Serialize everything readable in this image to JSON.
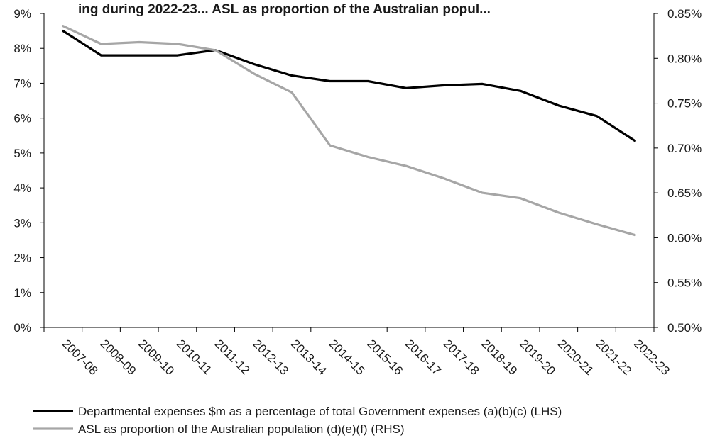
{
  "chart_data": {
    "type": "line",
    "title": "ing during 2022-23... ASL as proportion of the Australian popul...",
    "categories": [
      "2007-08",
      "2008-09",
      "2009-10",
      "2010-11",
      "2011-12",
      "2012-13",
      "2013-14",
      "2014-15",
      "2015-16",
      "2016-17",
      "2017-18",
      "2018-19",
      "2019-20",
      "2020-21",
      "2021-22",
      "2022-23"
    ],
    "left_axis": {
      "ylim": [
        0,
        9
      ],
      "ticks": [
        "0%",
        "1%",
        "2%",
        "3%",
        "4%",
        "5%",
        "6%",
        "7%",
        "8%",
        "9%"
      ]
    },
    "right_axis": {
      "ylim": [
        0.5,
        0.85
      ],
      "ticks": [
        "0.50%",
        "0.55%",
        "0.60%",
        "0.65%",
        "0.70%",
        "0.75%",
        "0.80%",
        "0.85%"
      ]
    },
    "series": [
      {
        "name": "Departmental expenses $m as a percentage of total Government expenses (a)(b)(c) (LHS)",
        "axis": "left",
        "color": "#000000",
        "values": [
          8.5,
          7.8,
          7.8,
          7.8,
          7.95,
          7.55,
          7.22,
          7.06,
          7.06,
          6.86,
          6.94,
          6.98,
          6.78,
          6.36,
          6.06,
          5.35
        ]
      },
      {
        "name": "ASL as proportion of the Australian population (d)(e)(f) (RHS)",
        "axis": "right",
        "color": "#a6a6a6",
        "values": [
          0.836,
          0.816,
          0.818,
          0.816,
          0.809,
          0.783,
          0.762,
          0.703,
          0.69,
          0.68,
          0.666,
          0.65,
          0.644,
          0.628,
          0.615,
          0.603
        ]
      }
    ],
    "grid": false,
    "legend_position": "bottom"
  }
}
